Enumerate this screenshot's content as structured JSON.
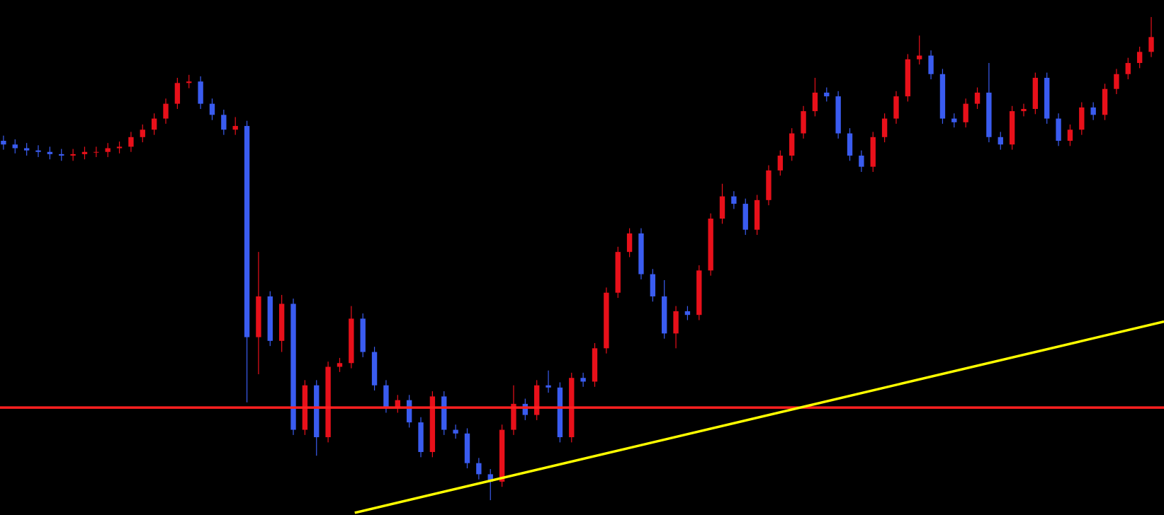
{
  "chart_data": {
    "type": "candlestick",
    "xlim": [
      -0.3,
      100.1
    ],
    "ylim": [
      0,
      695
    ],
    "up_color": "#e8101a",
    "down_color": "#3a5cf0",
    "open": [
      505,
      500,
      495,
      492,
      490,
      487,
      485,
      487,
      490,
      490,
      495,
      497,
      510,
      520,
      535,
      555,
      583,
      585,
      555,
      540,
      520,
      525,
      240,
      295,
      235,
      285,
      115,
      175,
      105,
      200,
      205,
      265,
      220,
      175,
      145,
      155,
      125,
      85,
      160,
      115,
      110,
      70,
      55,
      45,
      115,
      150,
      135,
      175,
      172,
      105,
      185,
      180,
      225,
      300,
      355,
      380,
      325,
      295,
      245,
      275,
      270,
      330,
      400,
      430,
      420,
      385,
      425,
      465,
      485,
      515,
      545,
      570,
      565,
      515,
      485,
      470,
      510,
      535,
      565,
      615,
      620,
      595,
      535,
      530,
      555,
      570,
      510,
      500,
      545,
      548,
      590,
      535,
      505,
      520,
      550,
      540,
      575,
      595,
      610,
      625
    ],
    "high": [
      512,
      507,
      502,
      499,
      497,
      494,
      494,
      497,
      497,
      502,
      504,
      517,
      527,
      542,
      562,
      590,
      594,
      592,
      562,
      547,
      537,
      532,
      355,
      302,
      297,
      292,
      182,
      182,
      207,
      212,
      282,
      272,
      227,
      182,
      162,
      162,
      132,
      167,
      167,
      122,
      117,
      77,
      62,
      122,
      175,
      157,
      182,
      195,
      179,
      192,
      192,
      232,
      307,
      362,
      387,
      387,
      332,
      317,
      282,
      282,
      337,
      407,
      447,
      437,
      427,
      432,
      472,
      492,
      522,
      552,
      590,
      577,
      572,
      522,
      492,
      517,
      542,
      572,
      622,
      647,
      627,
      602,
      542,
      562,
      577,
      610,
      517,
      552,
      555,
      597,
      597,
      542,
      527,
      557,
      557,
      582,
      602,
      617,
      632,
      672
    ],
    "low": [
      493,
      488,
      485,
      483,
      480,
      478,
      478,
      480,
      483,
      483,
      488,
      490,
      503,
      513,
      528,
      548,
      576,
      548,
      533,
      513,
      513,
      152,
      190,
      228,
      220,
      108,
      108,
      80,
      98,
      193,
      198,
      213,
      168,
      138,
      138,
      118,
      78,
      78,
      108,
      103,
      63,
      48,
      20,
      38,
      108,
      128,
      128,
      165,
      98,
      98,
      173,
      173,
      218,
      293,
      348,
      318,
      288,
      238,
      225,
      263,
      263,
      323,
      393,
      413,
      378,
      378,
      418,
      458,
      478,
      508,
      538,
      558,
      508,
      478,
      463,
      463,
      503,
      528,
      558,
      608,
      588,
      528,
      523,
      523,
      548,
      503,
      493,
      493,
      538,
      541,
      528,
      498,
      498,
      513,
      533,
      533,
      568,
      588,
      603,
      618
    ],
    "close": [
      500,
      495,
      492,
      490,
      487,
      485,
      487,
      490,
      490,
      495,
      497,
      510,
      520,
      535,
      555,
      583,
      585,
      555,
      540,
      520,
      525,
      240,
      295,
      235,
      285,
      115,
      175,
      105,
      200,
      205,
      265,
      220,
      175,
      145,
      155,
      125,
      85,
      160,
      115,
      110,
      70,
      55,
      45,
      115,
      150,
      135,
      175,
      172,
      105,
      185,
      180,
      225,
      300,
      355,
      380,
      325,
      295,
      245,
      275,
      270,
      330,
      400,
      430,
      420,
      385,
      425,
      465,
      485,
      515,
      545,
      570,
      565,
      515,
      485,
      470,
      510,
      535,
      565,
      615,
      620,
      595,
      535,
      530,
      555,
      570,
      510,
      500,
      545,
      548,
      590,
      535,
      505,
      520,
      550,
      540,
      575,
      595,
      610,
      625,
      645
    ],
    "levels": [
      {
        "value": 145,
        "color": "#ff2020"
      }
    ],
    "trendline": {
      "x": [
        30.3,
        100.1
      ],
      "y": [
        3,
        261
      ],
      "color": "#ffff00"
    }
  }
}
